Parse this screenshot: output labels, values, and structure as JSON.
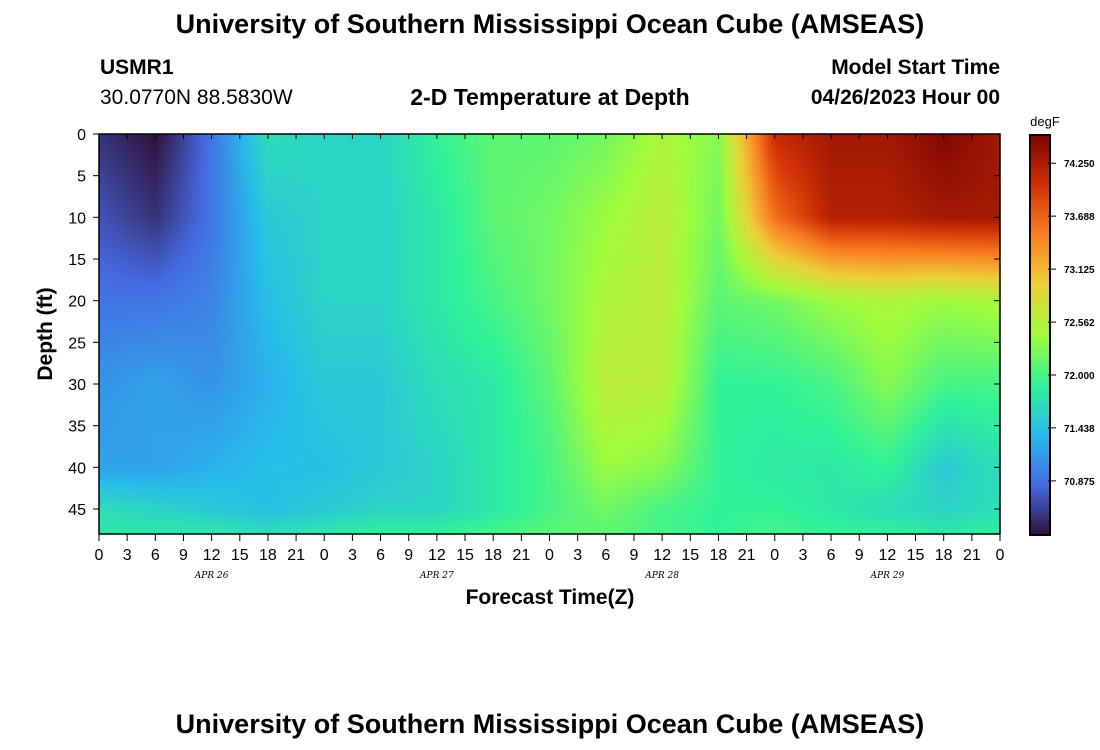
{
  "header": {
    "title": "University of Southern Mississippi Ocean Cube (AMSEAS)",
    "station": "USMR1",
    "coords": "30.0770N  88.5830W",
    "subtitle": "2-D Temperature at Depth",
    "start_label": "Model Start Time",
    "start_value": "04/26/2023 Hour 00"
  },
  "footer": {
    "title": "University of Southern Mississippi Ocean Cube (AMSEAS)"
  },
  "chart_data": {
    "type": "heatmap",
    "title": "2-D Temperature at Depth",
    "xlabel": "Forecast Time(Z)",
    "ylabel": "Depth (ft)",
    "x_tick_labels": [
      "0",
      "3",
      "6",
      "9",
      "12",
      "15",
      "18",
      "21",
      "0",
      "3",
      "6",
      "9",
      "12",
      "15",
      "18",
      "21",
      "0",
      "3",
      "6",
      "9",
      "12",
      "15",
      "18",
      "21",
      "0",
      "3",
      "6",
      "9",
      "12",
      "15",
      "18",
      "21",
      "0"
    ],
    "date_labels": [
      "APR 26",
      "APR 27",
      "APR 28",
      "APR 29"
    ],
    "x_hours": [
      0,
      96
    ],
    "y_ticks": [
      0,
      5,
      10,
      15,
      20,
      25,
      30,
      35,
      40,
      45
    ],
    "ylim": [
      0,
      48
    ],
    "y_inverted": true,
    "colorbar": {
      "unit": "degF",
      "tick_labels": [
        "74.250",
        "73.688",
        "73.125",
        "72.562",
        "72.000",
        "71.438",
        "70.875"
      ],
      "tick_values": [
        74.25,
        73.688,
        73.125,
        72.562,
        72.0,
        71.438,
        70.875
      ],
      "range": [
        70.3,
        74.55
      ],
      "colormap": "turbo"
    },
    "grid_hours": [
      0,
      6,
      12,
      18,
      24,
      30,
      36,
      42,
      48,
      54,
      60,
      66,
      72,
      78,
      84,
      90,
      96
    ],
    "grid_depths": [
      0,
      10,
      20,
      30,
      40,
      45,
      48
    ],
    "temperature": [
      [
        70.5,
        70.3,
        70.9,
        71.7,
        71.6,
        71.6,
        71.9,
        72.1,
        72.1,
        72.2,
        72.5,
        72.3,
        74.1,
        74.3,
        74.3,
        74.5,
        74.3
      ],
      [
        70.7,
        70.5,
        70.9,
        71.5,
        71.6,
        71.6,
        71.8,
        72.1,
        72.2,
        72.4,
        72.6,
        72.2,
        73.6,
        74.2,
        74.2,
        74.3,
        74.3
      ],
      [
        70.9,
        70.9,
        71.0,
        71.4,
        71.6,
        71.6,
        71.8,
        72.0,
        72.2,
        72.5,
        72.6,
        72.1,
        72.2,
        72.4,
        72.5,
        72.4,
        72.5
      ],
      [
        71.1,
        71.2,
        71.1,
        71.3,
        71.5,
        71.5,
        71.7,
        71.8,
        72.1,
        72.6,
        72.6,
        71.9,
        71.9,
        72.0,
        72.3,
        72.0,
        72.0
      ],
      [
        71.2,
        71.2,
        71.3,
        71.4,
        71.4,
        71.5,
        71.6,
        71.8,
        72.0,
        72.4,
        72.3,
        71.9,
        71.8,
        71.8,
        71.9,
        71.5,
        71.7
      ],
      [
        71.7,
        71.6,
        71.5,
        71.4,
        71.5,
        71.6,
        71.6,
        71.8,
        72.0,
        72.2,
        72.0,
        71.9,
        71.9,
        71.8,
        71.7,
        71.6,
        71.7
      ],
      [
        71.8,
        71.8,
        71.8,
        71.7,
        71.8,
        71.9,
        71.9,
        72.0,
        72.1,
        72.1,
        72.0,
        71.9,
        72.0,
        71.9,
        71.9,
        71.8,
        71.9
      ]
    ]
  }
}
